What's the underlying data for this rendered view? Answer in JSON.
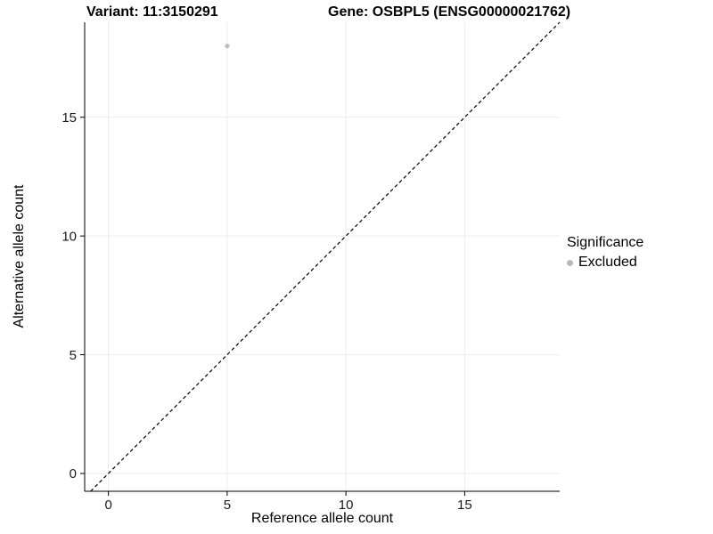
{
  "titles": {
    "variant": "Variant: 11:3150291",
    "gene": "Gene: OSBPL5 (ENSG00000021762)"
  },
  "chart_data": {
    "type": "scatter",
    "title": "Variant: 11:3150291   Gene: OSBPL5 (ENSG00000021762)",
    "xlabel": "Reference allele count",
    "ylabel": "Alternative allele count",
    "xlim": [
      -1,
      19
    ],
    "ylim": [
      -0.75,
      19
    ],
    "xticks": [
      0,
      5,
      10,
      15
    ],
    "yticks": [
      0,
      5,
      10,
      15
    ],
    "grid": true,
    "points": [
      {
        "x": 5,
        "y": 18,
        "series": "Excluded"
      }
    ],
    "reference_line": {
      "type": "identity",
      "equation": "y = x",
      "style": "dashed",
      "color": "#000000"
    },
    "legend": {
      "title": "Significance",
      "position": "right",
      "entries": [
        {
          "label": "Excluded",
          "color": "#b8b8b8",
          "marker": "circle"
        }
      ]
    },
    "colors": {
      "point": "#bdbdbd",
      "grid": "#ececec",
      "axis": "#000000",
      "background": "#ffffff"
    }
  }
}
